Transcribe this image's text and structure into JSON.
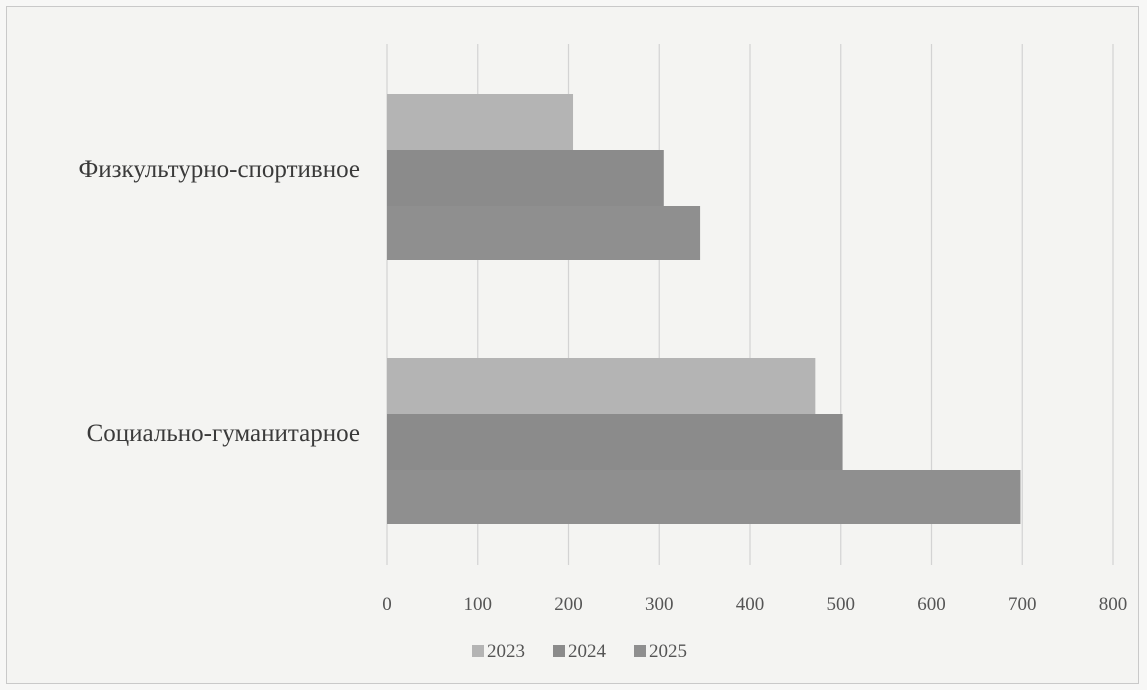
{
  "chart_data": {
    "type": "bar",
    "orientation": "horizontal",
    "categories": [
      "Физкультурно-спортивное",
      "Социально-гуманитарное"
    ],
    "series": [
      {
        "name": "2023",
        "color": "#b4b4b4",
        "values": [
          205,
          472
        ]
      },
      {
        "name": "2024",
        "color": "#8b8b8b",
        "values": [
          305,
          502
        ]
      },
      {
        "name": "2025",
        "color": "#8f8f8f",
        "values": [
          345,
          698
        ]
      }
    ],
    "xlim": [
      0,
      800
    ],
    "xticks": [
      "0",
      "100",
      "200",
      "300",
      "400",
      "500",
      "600",
      "700",
      "800"
    ],
    "grid": true,
    "legend_position": "bottom",
    "title": "",
    "xlabel": "",
    "ylabel": ""
  }
}
